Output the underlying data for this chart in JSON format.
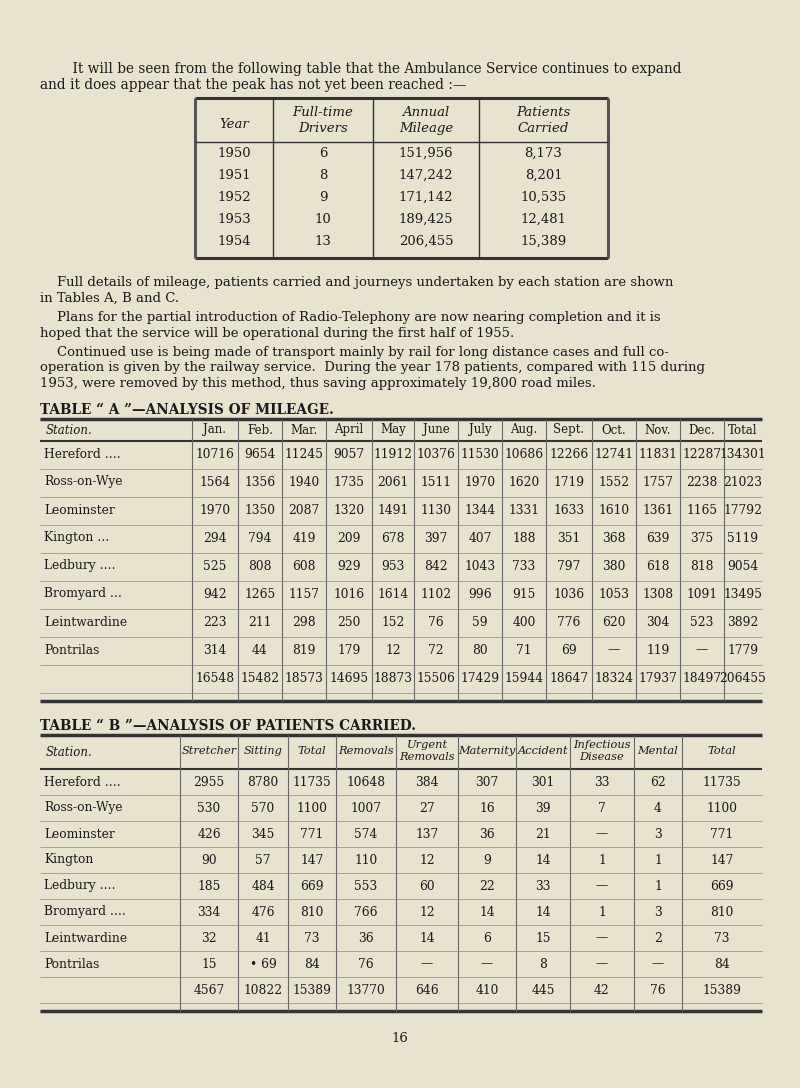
{
  "bg_color": "#e8e3cf",
  "text_color": "#1a1a1a",
  "intro_line1": "    It will be seen from the following table that the Ambulance Service continues to expand",
  "intro_line2": "and it does appear that the peak has not yet been reached :—",
  "table1_headers": [
    "Year",
    "Full-time\nDrivers",
    "Annual\nMileage",
    "Patients\nCarried"
  ],
  "table1_data": [
    [
      "1950",
      "6",
      "151,956",
      "8,173"
    ],
    [
      "1951",
      "8",
      "147,242",
      "8,201"
    ],
    [
      "1952",
      "9",
      "171,142",
      "10,535"
    ],
    [
      "1953",
      "10",
      "189,425",
      "12,481"
    ],
    [
      "1954",
      "13",
      "206,455",
      "15,389"
    ]
  ],
  "para1_line1": "    Full details of mileage, patients carried and journeys undertaken by each station are shown",
  "para1_line2": "in Tables A, B and C.",
  "para2_line1": "    Plans for the partial introduction of Radio-Telephony are now nearing completion and it is",
  "para2_line2": "hoped that the service will be operational during the first half of 1955.",
  "para3_line1": "    Continued use is being made of transport mainly by rail for long distance cases and full co-",
  "para3_line2": "operation is given by the railway service.  During the year 178 patients, compared with 115 during",
  "para3_line3": "1953, were removed by this method, thus saving approximately 19,800 road miles.",
  "table_a_title": "TABLE “ A ”—ANALYSIS OF MILEAGE.",
  "table_a_headers": [
    "Station.",
    "Jan.",
    "Feb.",
    "Mar.",
    "April",
    "May",
    "June",
    "July",
    "Aug.",
    "Sept.",
    "Oct.",
    "Nov.",
    "Dec.",
    "Total"
  ],
  "table_a_data": [
    [
      "Hereford ….",
      "10716",
      "9654",
      "11245",
      "9057",
      "11912",
      "10376",
      "11530",
      "10686",
      "12266",
      "12741",
      "11831",
      "12287",
      "134301"
    ],
    [
      "Ross-on-Wye",
      "1564",
      "1356",
      "1940",
      "1735",
      "2061",
      "1511",
      "1970",
      "1620",
      "1719",
      "1552",
      "1757",
      "2238",
      "21023"
    ],
    [
      "Leominster",
      "1970",
      "1350",
      "2087",
      "1320",
      "1491",
      "1130",
      "1344",
      "1331",
      "1633",
      "1610",
      "1361",
      "1165",
      "17792"
    ],
    [
      "Kington …",
      "294",
      "794",
      "419",
      "209",
      "678",
      "397",
      "407",
      "188",
      "351",
      "368",
      "639",
      "375",
      "5119"
    ],
    [
      "Ledbury ….",
      "525",
      "808",
      "608",
      "929",
      "953",
      "842",
      "1043",
      "733",
      "797",
      "380",
      "618",
      "818",
      "9054"
    ],
    [
      "Bromyard …",
      "942",
      "1265",
      "1157",
      "1016",
      "1614",
      "1102",
      "996",
      "915",
      "1036",
      "1053",
      "1308",
      "1091",
      "13495"
    ],
    [
      "Leintwardine",
      "223",
      "211",
      "298",
      "250",
      "152",
      "76",
      "59",
      "400",
      "776",
      "620",
      "304",
      "523",
      "3892"
    ],
    [
      "Pontrilas",
      "314",
      "44",
      "819",
      "179",
      "12",
      "72",
      "80",
      "71",
      "69",
      "—",
      "119",
      "—",
      "1779"
    ],
    [
      "",
      "16548",
      "15482",
      "18573",
      "14695",
      "18873",
      "15506",
      "17429",
      "15944",
      "18647",
      "18324",
      "17937",
      "18497",
      "206455"
    ]
  ],
  "table_b_title": "TABLE “ B ”—ANALYSIS OF PATIENTS CARRIED.",
  "table_b_headers": [
    "Station.",
    "Stretcher",
    "Sitting",
    "Total",
    "Removals",
    "Urgent\nRemovals",
    "Maternity",
    "Accident",
    "Infectious\nDisease",
    "Mental",
    "Total"
  ],
  "table_b_data": [
    [
      "Hereford ….",
      "2955",
      "8780",
      "11735",
      "10648",
      "384",
      "307",
      "301",
      "33",
      "62",
      "11735"
    ],
    [
      "Ross-on-Wye",
      "530",
      "570",
      "1100",
      "1007",
      "27",
      "16",
      "39",
      "7",
      "4",
      "1100"
    ],
    [
      "Leominster",
      "426",
      "345",
      "771",
      "574",
      "137",
      "36",
      "21",
      "—",
      "3",
      "771"
    ],
    [
      "Kington",
      "90",
      "57",
      "147",
      "110",
      "12",
      "9",
      "14",
      "1",
      "1",
      "147"
    ],
    [
      "Ledbury ….",
      "185",
      "484",
      "669",
      "553",
      "60",
      "22",
      "33",
      "—",
      "1",
      "669"
    ],
    [
      "Bromyard ….",
      "334",
      "476",
      "810",
      "766",
      "12",
      "14",
      "14",
      "1",
      "3",
      "810"
    ],
    [
      "Leintwardine",
      "32",
      "41",
      "73",
      "36",
      "14",
      "6",
      "15",
      "—",
      "2",
      "73"
    ],
    [
      "Pontrilas",
      "15",
      "• 69",
      "84",
      "76",
      "—",
      "—",
      "8",
      "—",
      "—",
      "84"
    ],
    [
      "",
      "4567",
      "10822",
      "15389",
      "13770",
      "646",
      "410",
      "445",
      "42",
      "76",
      "15389"
    ]
  ],
  "page_num": "16"
}
